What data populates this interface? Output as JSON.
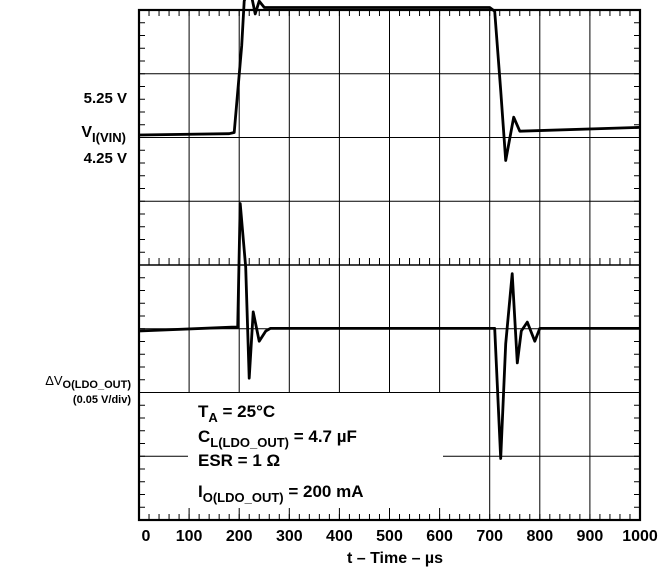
{
  "chart_data": {
    "type": "line",
    "xlabel": "t – Time – µs",
    "xlim": [
      0,
      1000
    ],
    "xticks": [
      "0",
      "100",
      "200",
      "300",
      "400",
      "500",
      "600",
      "700",
      "800",
      "900",
      "1000"
    ],
    "top_panel": {
      "label_high": "5.25 V",
      "label_main": "V",
      "label_sub": "I(VIN)",
      "label_low": "4.25 V",
      "units_per_div": 0.5,
      "series": [
        {
          "x": [
            0,
            180,
            190,
            205,
            210,
            220,
            232,
            240,
            250,
            275,
            700,
            710,
            722,
            732,
            748,
            760,
            1000
          ],
          "y": [
            4.25,
            4.26,
            4.27,
            4.95,
            5.3,
            5.43,
            5.2,
            5.3,
            5.25,
            5.25,
            5.25,
            5.22,
            4.6,
            4.05,
            4.39,
            4.28,
            4.31
          ]
        }
      ]
    },
    "bottom_panel": {
      "label_main": "ΔV",
      "label_sub": "O(LDO_OUT)",
      "label_scale": "(0.05 V/div)",
      "units_per_div": 0.05,
      "series": [
        {
          "x": [
            0,
            185,
            197,
            202,
            213,
            220,
            228,
            240,
            253,
            262,
            275,
            700,
            710,
            722,
            732,
            745,
            755,
            763,
            775,
            790,
            800,
            810,
            1000
          ],
          "y": [
            0,
            0.003,
            0.003,
            0.1,
            0.05,
            -0.037,
            0.015,
            -0.008,
            0.0,
            0.002,
            0.002,
            0.002,
            0.002,
            -0.1,
            -0.01,
            0.045,
            -0.025,
            0.0,
            0.007,
            -0.008,
            0.002,
            0.002,
            0.002
          ]
        }
      ]
    },
    "annotations": [
      {
        "main": "T",
        "sub": "A",
        "rest": " = 25°C"
      },
      {
        "main": "C",
        "sub": "L(LDO_OUT)",
        "rest": " = 4.7 µF"
      },
      {
        "main": "ESR = 1 Ω",
        "sub": "",
        "rest": ""
      },
      {
        "main": "I",
        "sub": "O(LDO_OUT)",
        "rest": " = 200 mA"
      }
    ]
  }
}
